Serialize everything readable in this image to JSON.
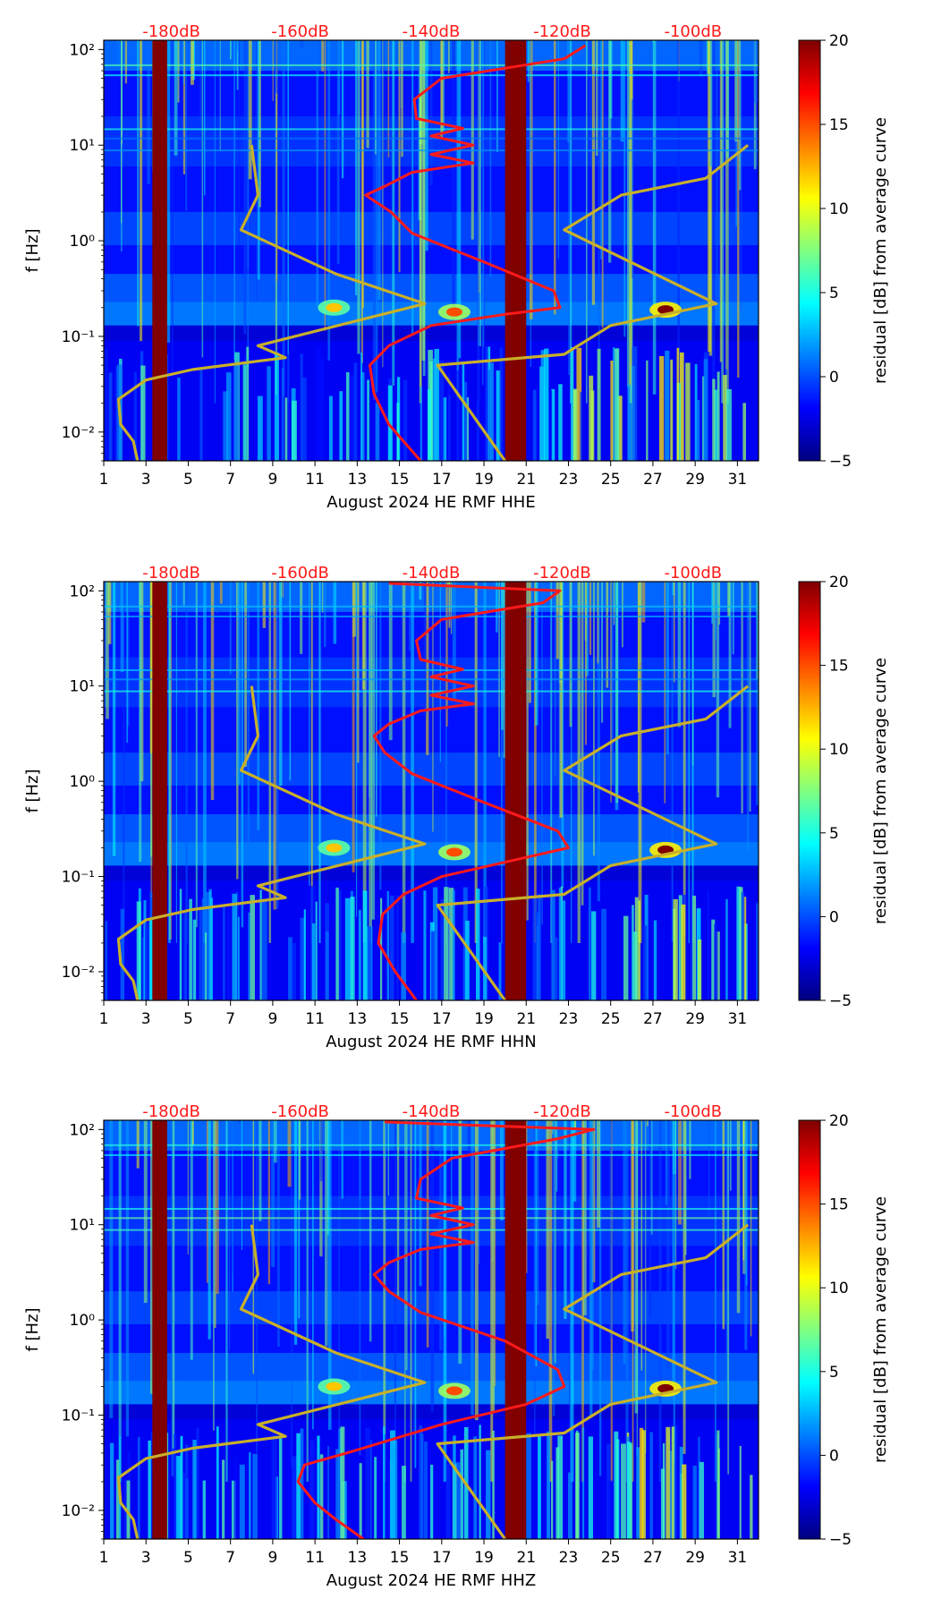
{
  "colors": {
    "overlay_db_curve": "#ff1a1a",
    "model_curve": "#c8b02a",
    "gap_band": "#800000",
    "jet": [
      "#00007f",
      "#0000ff",
      "#0080ff",
      "#00ffff",
      "#80ff80",
      "#ffff00",
      "#ff8000",
      "#ff0000",
      "#7f0000"
    ]
  },
  "chart_data": [
    {
      "type": "heatmap",
      "xlabel": "August 2024 HE RMF  HHE",
      "ylabel": "f [Hz]",
      "x_range": [
        1,
        32
      ],
      "x_ticks": [
        "1",
        "3",
        "5",
        "7",
        "9",
        "11",
        "13",
        "15",
        "17",
        "19",
        "21",
        "23",
        "25",
        "27",
        "29",
        "31"
      ],
      "y_scale": "log",
      "y_range_hz": [
        0.005,
        125
      ],
      "y_ticks": [
        "10⁻²",
        "10⁻¹",
        "10⁰",
        "10¹",
        "10²"
      ],
      "top_db_labels": [
        "-180dB",
        "-160dB",
        "-140dB",
        "-120dB",
        "-100dB"
      ],
      "colorbar": {
        "label": "residual [dB] from average curve",
        "range": [
          -5,
          20
        ],
        "ticks": [
          "−5",
          "0",
          "5",
          "10",
          "15",
          "20"
        ]
      },
      "data_gaps_days": [
        [
          3.3,
          4.0
        ],
        [
          20.0,
          21.0
        ]
      ],
      "hotspots": [
        {
          "day": 11.9,
          "hz": 0.2,
          "db": 12
        },
        {
          "day": 17.6,
          "hz": 0.18,
          "db": 15
        },
        {
          "day": 27.6,
          "hz": 0.19,
          "db": 20
        }
      ],
      "series": [
        {
          "name": "median_noise_db",
          "points": [
            [
              16.0,
              0.005
            ],
            [
              14.5,
              0.012
            ],
            [
              13.8,
              0.025
            ],
            [
              13.6,
              0.05
            ],
            [
              14.5,
              0.08
            ],
            [
              16.5,
              0.13
            ],
            [
              20.0,
              0.17
            ],
            [
              22.6,
              0.2
            ],
            [
              22.3,
              0.3
            ],
            [
              19.0,
              0.6
            ],
            [
              15.6,
              1.2
            ],
            [
              14.6,
              2.0
            ],
            [
              13.4,
              3.0
            ],
            [
              14.4,
              3.8
            ],
            [
              15.6,
              5.2
            ],
            [
              18.5,
              6.5
            ],
            [
              16.5,
              8.0
            ],
            [
              18.5,
              10
            ],
            [
              16.5,
              12.5
            ],
            [
              18.0,
              15
            ],
            [
              15.8,
              19
            ],
            [
              15.7,
              30
            ],
            [
              17.0,
              50
            ],
            [
              22.8,
              80
            ],
            [
              23.8,
              110
            ]
          ]
        },
        {
          "name": "reference_model_db",
          "points": [
            [
              2.6,
              0.005
            ],
            [
              2.4,
              0.008
            ],
            [
              1.8,
              0.012
            ],
            [
              1.7,
              0.022
            ],
            [
              3.0,
              0.035
            ],
            [
              5.2,
              0.045
            ],
            [
              9.6,
              0.06
            ],
            [
              8.3,
              0.08
            ],
            [
              16.2,
              0.22
            ],
            [
              12.0,
              0.45
            ],
            [
              7.5,
              1.3
            ],
            [
              8.3,
              3.0
            ],
            [
              8.0,
              10
            ],
            [
              null,
              null
            ],
            [
              20.0,
              0.005
            ],
            [
              16.8,
              0.05
            ],
            [
              22.8,
              0.065
            ],
            [
              25.0,
              0.13
            ],
            [
              30.0,
              0.22
            ],
            [
              22.8,
              1.3
            ],
            [
              25.5,
              3.0
            ],
            [
              29.5,
              4.5
            ],
            [
              31.5,
              10
            ]
          ]
        }
      ]
    },
    {
      "type": "heatmap",
      "xlabel": "August 2024 HE RMF  HHN",
      "ylabel": "f [Hz]",
      "x_range": [
        1,
        32
      ],
      "x_ticks": [
        "1",
        "3",
        "5",
        "7",
        "9",
        "11",
        "13",
        "15",
        "17",
        "19",
        "21",
        "23",
        "25",
        "27",
        "29",
        "31"
      ],
      "y_scale": "log",
      "y_range_hz": [
        0.005,
        125
      ],
      "y_ticks": [
        "10⁻²",
        "10⁻¹",
        "10⁰",
        "10¹",
        "10²"
      ],
      "top_db_labels": [
        "-180dB",
        "-160dB",
        "-140dB",
        "-120dB",
        "-100dB"
      ],
      "colorbar": {
        "label": "residual [dB] from average curve",
        "range": [
          -5,
          20
        ],
        "ticks": [
          "−5",
          "0",
          "5",
          "10",
          "15",
          "20"
        ]
      },
      "data_gaps_days": [
        [
          3.3,
          4.0
        ],
        [
          20.0,
          21.0
        ]
      ],
      "hotspots": [
        {
          "day": 11.9,
          "hz": 0.2,
          "db": 12
        },
        {
          "day": 17.6,
          "hz": 0.18,
          "db": 15
        },
        {
          "day": 27.6,
          "hz": 0.19,
          "db": 20
        }
      ],
      "series": [
        {
          "name": "median_noise_db",
          "points": [
            [
              15.8,
              0.005
            ],
            [
              14.8,
              0.01
            ],
            [
              14.0,
              0.02
            ],
            [
              14.2,
              0.04
            ],
            [
              15.2,
              0.065
            ],
            [
              17.0,
              0.1
            ],
            [
              20.5,
              0.15
            ],
            [
              23.0,
              0.2
            ],
            [
              22.5,
              0.3
            ],
            [
              19.0,
              0.6
            ],
            [
              15.6,
              1.2
            ],
            [
              14.3,
              2.0
            ],
            [
              13.8,
              3.0
            ],
            [
              14.5,
              4.0
            ],
            [
              16.0,
              5.5
            ],
            [
              18.5,
              6.5
            ],
            [
              16.5,
              8.0
            ],
            [
              18.5,
              10
            ],
            [
              16.5,
              12.5
            ],
            [
              18.0,
              15
            ],
            [
              16.0,
              19
            ],
            [
              15.8,
              30
            ],
            [
              17.0,
              50
            ],
            [
              21.8,
              75
            ],
            [
              22.6,
              100
            ],
            [
              14.5,
              120
            ]
          ]
        },
        {
          "name": "reference_model_db",
          "points": [
            [
              2.6,
              0.005
            ],
            [
              2.4,
              0.008
            ],
            [
              1.8,
              0.012
            ],
            [
              1.7,
              0.022
            ],
            [
              3.0,
              0.035
            ],
            [
              5.2,
              0.045
            ],
            [
              9.6,
              0.06
            ],
            [
              8.3,
              0.08
            ],
            [
              16.2,
              0.22
            ],
            [
              12.0,
              0.45
            ],
            [
              7.5,
              1.3
            ],
            [
              8.3,
              3.0
            ],
            [
              8.0,
              10
            ],
            [
              null,
              null
            ],
            [
              20.0,
              0.005
            ],
            [
              16.8,
              0.05
            ],
            [
              22.8,
              0.065
            ],
            [
              25.0,
              0.13
            ],
            [
              30.0,
              0.22
            ],
            [
              22.8,
              1.3
            ],
            [
              25.5,
              3.0
            ],
            [
              29.5,
              4.5
            ],
            [
              31.5,
              10
            ]
          ]
        }
      ]
    },
    {
      "type": "heatmap",
      "xlabel": "August 2024 HE RMF  HHZ",
      "ylabel": "f [Hz]",
      "x_range": [
        1,
        32
      ],
      "x_ticks": [
        "1",
        "3",
        "5",
        "7",
        "9",
        "11",
        "13",
        "15",
        "17",
        "19",
        "21",
        "23",
        "25",
        "27",
        "29",
        "31"
      ],
      "y_scale": "log",
      "y_range_hz": [
        0.005,
        125
      ],
      "y_ticks": [
        "10⁻²",
        "10⁻¹",
        "10⁰",
        "10¹",
        "10²"
      ],
      "top_db_labels": [
        "-180dB",
        "-160dB",
        "-140dB",
        "-120dB",
        "-100dB"
      ],
      "colorbar": {
        "label": "residual [dB] from average curve",
        "range": [
          -5,
          20
        ],
        "ticks": [
          "−5",
          "0",
          "5",
          "10",
          "15",
          "20"
        ]
      },
      "data_gaps_days": [
        [
          3.3,
          4.0
        ],
        [
          20.0,
          21.0
        ]
      ],
      "hotspots": [
        {
          "day": 11.9,
          "hz": 0.2,
          "db": 12
        },
        {
          "day": 17.6,
          "hz": 0.18,
          "db": 15
        },
        {
          "day": 27.6,
          "hz": 0.19,
          "db": 20
        }
      ],
      "series": [
        {
          "name": "median_noise_db",
          "points": [
            [
              13.3,
              0.005
            ],
            [
              12.0,
              0.008
            ],
            [
              11.0,
              0.012
            ],
            [
              10.2,
              0.02
            ],
            [
              10.5,
              0.03
            ],
            [
              12.5,
              0.04
            ],
            [
              17.0,
              0.08
            ],
            [
              21.0,
              0.13
            ],
            [
              22.8,
              0.2
            ],
            [
              22.5,
              0.3
            ],
            [
              20.0,
              0.6
            ],
            [
              16.0,
              1.2
            ],
            [
              14.5,
              2.0
            ],
            [
              13.8,
              3.0
            ],
            [
              14.5,
              4.0
            ],
            [
              16.0,
              5.5
            ],
            [
              18.5,
              6.5
            ],
            [
              16.5,
              8.0
            ],
            [
              18.5,
              10
            ],
            [
              16.5,
              12.5
            ],
            [
              18.0,
              15
            ],
            [
              15.8,
              19
            ],
            [
              16.0,
              30
            ],
            [
              17.5,
              50
            ],
            [
              22.5,
              80
            ],
            [
              24.2,
              100
            ],
            [
              14.3,
              120
            ]
          ]
        },
        {
          "name": "reference_model_db",
          "points": [
            [
              2.6,
              0.005
            ],
            [
              2.4,
              0.008
            ],
            [
              1.8,
              0.012
            ],
            [
              1.7,
              0.022
            ],
            [
              3.0,
              0.035
            ],
            [
              5.2,
              0.045
            ],
            [
              9.6,
              0.06
            ],
            [
              8.3,
              0.08
            ],
            [
              16.2,
              0.22
            ],
            [
              12.0,
              0.45
            ],
            [
              7.5,
              1.3
            ],
            [
              8.3,
              3.0
            ],
            [
              8.0,
              10
            ],
            [
              null,
              null
            ],
            [
              20.0,
              0.005
            ],
            [
              16.8,
              0.05
            ],
            [
              22.8,
              0.065
            ],
            [
              25.0,
              0.13
            ],
            [
              30.0,
              0.22
            ],
            [
              22.8,
              1.3
            ],
            [
              25.5,
              3.0
            ],
            [
              29.5,
              4.5
            ],
            [
              31.5,
              10
            ]
          ]
        }
      ]
    }
  ]
}
